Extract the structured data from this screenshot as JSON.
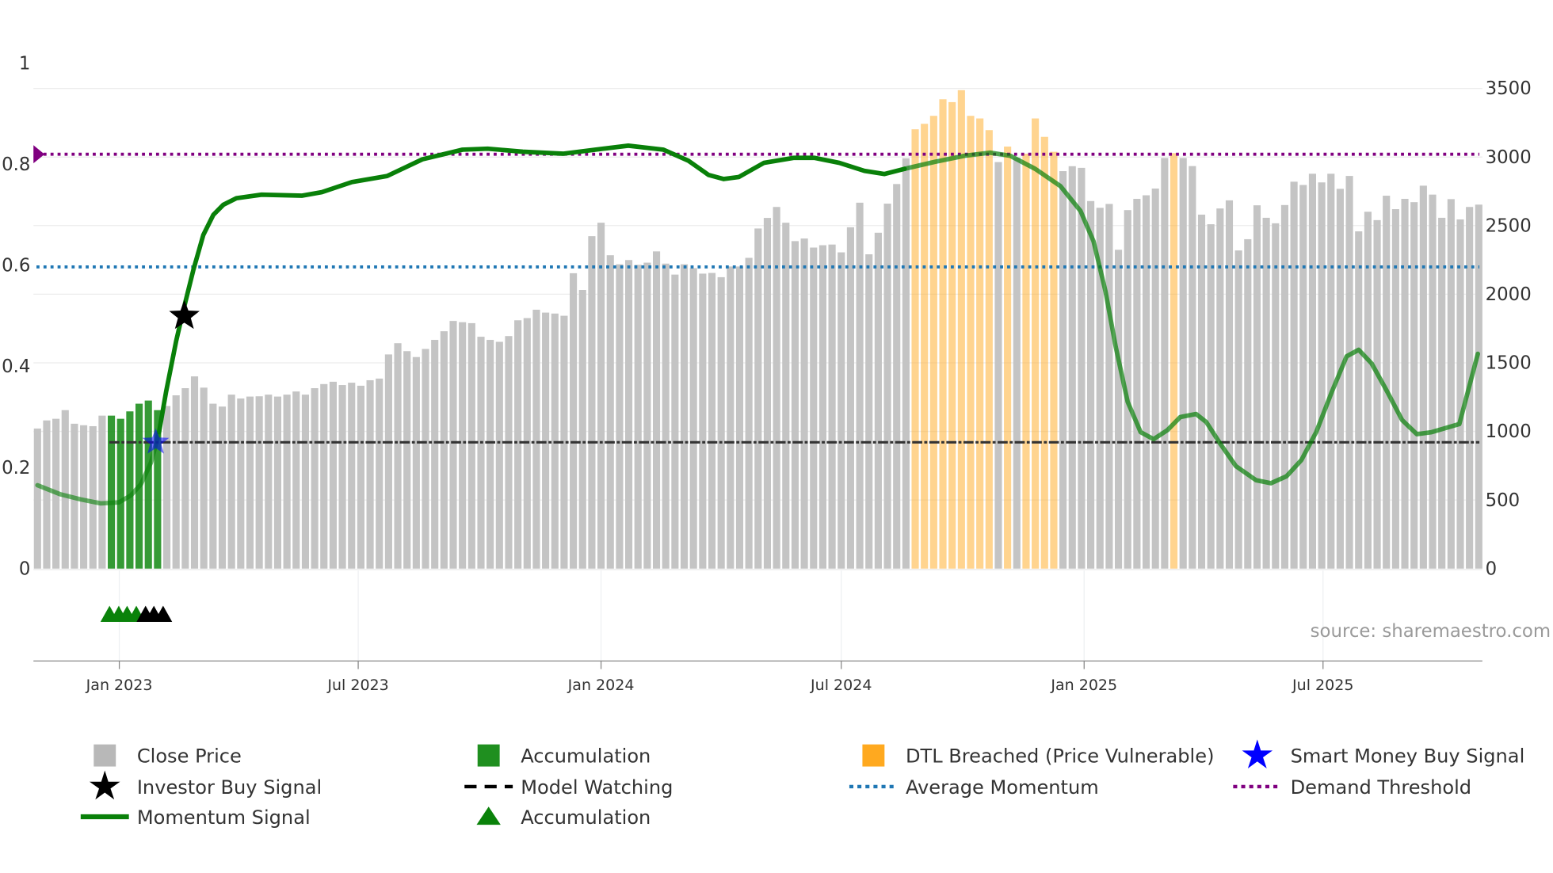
{
  "chart_data": {
    "type": "bar",
    "title": "",
    "series_start_date": "2022-10-31",
    "interval_days": 7,
    "left_axis": {
      "ylim": [
        0,
        1
      ],
      "ticks": [
        "0",
        "0.2",
        "0.4",
        "0.6",
        "0.8",
        "1"
      ],
      "tick_values": [
        0,
        0.2,
        0.4,
        0.6,
        0.8,
        1
      ]
    },
    "right_axis": {
      "ylim": [
        0,
        3500
      ],
      "ticks": [
        "0",
        "500",
        "1000",
        "1500",
        "2000",
        "2500",
        "3000",
        "3500"
      ],
      "tick_values": [
        0,
        500,
        1000,
        1500,
        2000,
        2500,
        3000,
        3500
      ],
      "grid": true
    },
    "x_ticks": [
      {
        "label": "Jan 2023",
        "date": "2023-01-01"
      },
      {
        "label": "Jul 2023",
        "date": "2023-07-01"
      },
      {
        "label": "Jan 2024",
        "date": "2024-01-01"
      },
      {
        "label": "Jul 2024",
        "date": "2024-07-01"
      },
      {
        "label": "Jan 2025",
        "date": "2025-01-01"
      },
      {
        "label": "Jul 2025",
        "date": "2025-07-01"
      }
    ],
    "close_price": [
      1021,
      1080,
      1092,
      1155,
      1056,
      1045,
      1038,
      1115,
      1115,
      1092,
      1146,
      1202,
      1225,
      1155,
      1185,
      1263,
      1315,
      1401,
      1319,
      1202,
      1181,
      1268,
      1240,
      1254,
      1256,
      1268,
      1254,
      1268,
      1291,
      1268,
      1315,
      1345,
      1362,
      1338,
      1355,
      1333,
      1373,
      1385,
      1561,
      1643,
      1585,
      1542,
      1601,
      1667,
      1730,
      1805,
      1796,
      1789,
      1690,
      1667,
      1653,
      1695,
      1810,
      1826,
      1887,
      1866,
      1859,
      1843,
      2153,
      2031,
      2423,
      2521,
      2284,
      2218,
      2249,
      2214,
      2230,
      2312,
      2223,
      2143,
      2218,
      2190,
      2150,
      2155,
      2124,
      2202,
      2202,
      2265,
      2479,
      2556,
      2636,
      2521,
      2387,
      2406,
      2340,
      2357,
      2362,
      2305,
      2488,
      2667,
      2291,
      2448,
      2660,
      2803,
      2991,
      3202,
      3242,
      3300,
      3421,
      3400,
      3487,
      3300,
      3281,
      3196,
      2963,
      3076,
      2995,
      3024,
      3281,
      3147,
      3038,
      2897,
      2933,
      2921,
      2679,
      2630,
      2658,
      2324,
      2613,
      2695,
      2721,
      2770,
      2993,
      3028,
      2993,
      2934,
      2580,
      2510,
      2625,
      2684,
      2319,
      2401,
      2648,
      2557,
      2517,
      2650,
      2820,
      2796,
      2878,
      2815,
      2878,
      2768,
      2862,
      2458,
      2601,
      2540,
      2718,
      2620,
      2695,
      2671,
      2791,
      2726,
      2557,
      2693,
      2545,
      2636,
      2653
    ],
    "accumulation_bar_weeks": [
      8,
      9,
      10,
      11,
      12,
      13
    ],
    "dtl_breached_weeks": [
      95,
      96,
      97,
      98,
      99,
      100,
      101,
      102,
      103,
      105,
      107,
      108,
      109,
      110,
      123
    ],
    "momentum_signal": {
      "week_index": [
        0,
        2.5,
        4.68,
        6.85,
        8.81,
        10.11,
        11.2,
        12.29,
        13.16,
        13.92,
        15.01,
        15.77,
        16.86,
        17.94,
        19.03,
        20.12,
        21.53,
        24.25,
        28.6,
        30.78,
        34.04,
        37.85,
        41.65,
        46.0,
        48.72,
        52.53,
        56.88,
        61.23,
        63.95,
        67.75,
        70.47,
        72.65,
        74.28,
        75.91,
        78.63,
        81.89,
        84.07,
        86.79,
        89.5,
        91.68,
        93.85,
        97.12,
        100.38,
        103.1,
        105.27,
        107.99,
        110.71,
        112.89,
        114.3,
        115.6,
        116.7,
        118.0,
        119.4,
        120.8,
        122.3,
        123.7,
        125.4,
        126.5,
        128.1,
        129.7,
        131.9,
        133.5,
        135.2,
        136.8,
        138.4,
        140.1,
        141.7,
        143.0,
        144.4,
        146.1,
        147.7,
        149.3,
        150.9,
        153.9,
        155.9
      ],
      "values": [
        0.165,
        0.147,
        0.137,
        0.129,
        0.131,
        0.145,
        0.167,
        0.21,
        0.27,
        0.35,
        0.45,
        0.51,
        0.59,
        0.66,
        0.7,
        0.72,
        0.733,
        0.74,
        0.738,
        0.745,
        0.765,
        0.777,
        0.81,
        0.829,
        0.831,
        0.825,
        0.821,
        0.831,
        0.837,
        0.829,
        0.807,
        0.779,
        0.771,
        0.775,
        0.803,
        0.813,
        0.813,
        0.803,
        0.787,
        0.781,
        0.791,
        0.805,
        0.817,
        0.823,
        0.817,
        0.791,
        0.757,
        0.708,
        0.648,
        0.549,
        0.439,
        0.33,
        0.27,
        0.256,
        0.274,
        0.3,
        0.306,
        0.29,
        0.245,
        0.203,
        0.175,
        0.169,
        0.183,
        0.215,
        0.27,
        0.35,
        0.42,
        0.433,
        0.406,
        0.35,
        0.294,
        0.266,
        0.27,
        0.286,
        0.425
      ]
    },
    "demand_threshold": 0.82,
    "average_momentum": 0.597,
    "model_watching": {
      "value": 0.25,
      "from_week": 8
    },
    "investor_buy_signal": {
      "week_index": 15.9,
      "value": 0.5
    },
    "smart_money_buy_signal": {
      "week_index": 12.8,
      "value": 0.25
    },
    "accumulation_triangles_weeks": [
      7.8,
      8.8,
      9.7,
      10.7
    ],
    "watch_triangles_weeks": [
      11.7,
      12.6,
      13.6
    ],
    "legend": [
      {
        "label": "Close Price",
        "marker": "gray-square"
      },
      {
        "label": "Accumulation",
        "marker": "green-square"
      },
      {
        "label": "DTL Breached (Price Vulnerable)",
        "marker": "orange-square"
      },
      {
        "label": "Smart Money Buy Signal",
        "marker": "blue-star"
      },
      {
        "label": "Investor Buy Signal",
        "marker": "black-star"
      },
      {
        "label": "Model Watching",
        "marker": "black-dash"
      },
      {
        "label": "Average Momentum",
        "marker": "blue-dotted"
      },
      {
        "label": "Demand Threshold",
        "marker": "purple-dotted"
      },
      {
        "label": "Momentum Signal",
        "marker": "green-line"
      },
      {
        "label": "Accumulation",
        "marker": "green-triangle"
      }
    ],
    "legend_placement": "bottom",
    "source": "source: sharemaestro.com"
  },
  "colors": {
    "price": "#c4c4c4",
    "accumulation": "#1f8f1f",
    "dtl": "#ffa91f",
    "momentum": "#098009",
    "average": "#1f77b4",
    "demand": "#800080",
    "smart_money": "#0000ff",
    "investor": "#000000"
  }
}
